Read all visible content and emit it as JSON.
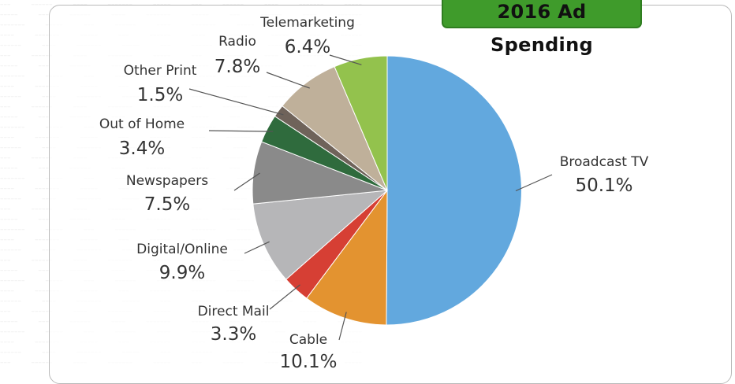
{
  "chart_data": {
    "type": "pie",
    "title": "2016 Ad Spending",
    "categories": [
      "Broadcast TV",
      "Cable",
      "Direct Mail",
      "Digital/Online",
      "Newspapers",
      "Out of Home",
      "Other Print",
      "Radio",
      "Telemarketing"
    ],
    "values": [
      50.1,
      10.1,
      3.3,
      9.9,
      7.5,
      3.4,
      1.5,
      7.8,
      6.4
    ],
    "value_labels": [
      "50.1%",
      "10.1%",
      "3.3%",
      "9.9%",
      "7.5%",
      "3.4%",
      "1.5%",
      "7.8%",
      "6.4%"
    ],
    "colors": [
      "#62a8de",
      "#e39330",
      "#d63f34",
      "#b6b6b8",
      "#8a8a8a",
      "#2f6b3d",
      "#6f635a",
      "#bfb09a",
      "#93c24d"
    ],
    "start": "12 o'clock",
    "direction": "clockwise",
    "legend": "none (labels beside slices)"
  }
}
